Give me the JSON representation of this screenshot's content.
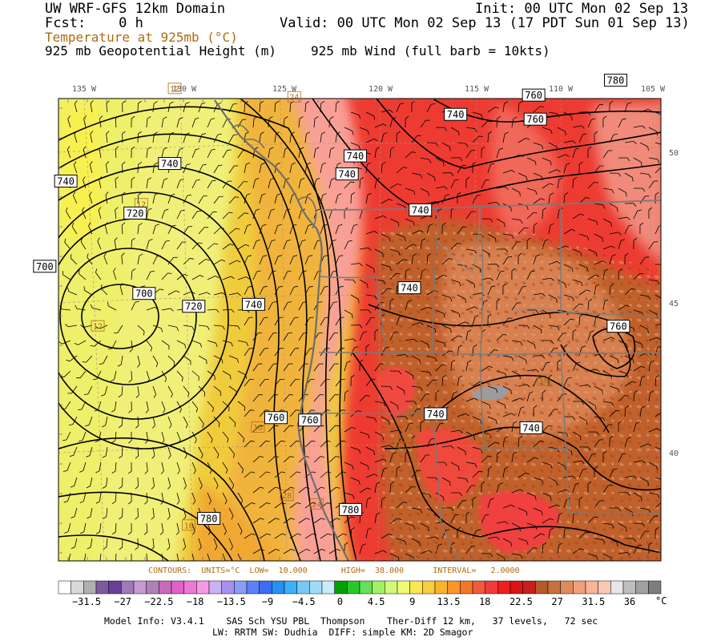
{
  "header": {
    "model": "UW WRF-GFS 12km Domain",
    "init": "Init: 00 UTC Mon 02 Sep 13",
    "fcst": "Fcst:    0 h",
    "valid": "Valid: 00 UTC Mon 02 Sep 13 (17 PDT Sun 01 Sep 13)",
    "field_temp": "Temperature at 925mb (°C)",
    "field_height": "925 mb Geopotential Height (m)",
    "field_wind": "925 mb Wind (full barb = 10kts)"
  },
  "map": {
    "lon_labels": [
      "135 W",
      "130 W",
      "125 W",
      "120 W",
      "115 W",
      "110 W",
      "105 W"
    ],
    "lat_labels": [
      "50",
      "45",
      "40"
    ],
    "height_labels": [
      {
        "text": "740",
        "lon": -136,
        "lat": 49.1
      },
      {
        "text": "740",
        "lon": -130.8,
        "lat": 49.5
      },
      {
        "text": "720",
        "lon": -132.5,
        "lat": 47.9
      },
      {
        "text": "700",
        "lon": -137,
        "lat": 46.3
      },
      {
        "text": "700",
        "lon": -132,
        "lat": 45.2
      },
      {
        "text": "720",
        "lon": -129.5,
        "lat": 44.7
      },
      {
        "text": "740",
        "lon": -126.5,
        "lat": 44.7
      },
      {
        "text": "760",
        "lon": -125.3,
        "lat": 40.9
      },
      {
        "text": "760",
        "lon": -123.6,
        "lat": 40.8
      },
      {
        "text": "780",
        "lon": -128.6,
        "lat": 37.6
      },
      {
        "text": "780",
        "lon": -121.5,
        "lat": 37.8
      },
      {
        "text": "740",
        "lon": -121.5,
        "lat": 49.6
      },
      {
        "text": "740",
        "lon": -121.9,
        "lat": 49.0
      },
      {
        "text": "740",
        "lon": -118.2,
        "lat": 47.8
      },
      {
        "text": "740",
        "lon": -118.7,
        "lat": 45.2
      },
      {
        "text": "740",
        "lon": -116.5,
        "lat": 51.0
      },
      {
        "text": "760",
        "lon": -112.6,
        "lat": 51.7
      },
      {
        "text": "760",
        "lon": -112.5,
        "lat": 50.9
      },
      {
        "text": "780",
        "lon": -108.5,
        "lat": 52.3
      },
      {
        "text": "760",
        "lon": -108.2,
        "lat": 44.1
      },
      {
        "text": "740",
        "lon": -117.3,
        "lat": 41.0
      },
      {
        "text": "740",
        "lon": -112.5,
        "lat": 40.6
      }
    ],
    "temp_labels": [
      {
        "text": "12",
        "lon": -130.6,
        "lat": 52.0
      },
      {
        "text": "24",
        "lon": -124.6,
        "lat": 51.6
      },
      {
        "text": "12",
        "lon": -132.2,
        "lat": 48.2
      },
      {
        "text": "12",
        "lon": -134.3,
        "lat": 44.2
      },
      {
        "text": "16",
        "lon": -126.2,
        "lat": 40.6
      },
      {
        "text": "36",
        "lon": -111.9,
        "lat": 42.2
      },
      {
        "text": "36",
        "lon": -118.8,
        "lat": 40.0
      },
      {
        "text": "28",
        "lon": -124.7,
        "lat": 38.3
      },
      {
        "text": "24",
        "lon": -123.2,
        "lat": 38.0
      },
      {
        "text": "16",
        "lon": -129.6,
        "lat": 37.4
      }
    ]
  },
  "contour_info": "CONTOURS:  UNITS=°C  LOW=  10.000       HIGH=  38.000      INTERVAL=   2.0000",
  "colorbar": {
    "colors": [
      "#ffffff",
      "#d8d8d8",
      "#b0b0b0",
      "#7d5a9e",
      "#6a3d9a",
      "#9e7ab8",
      "#c79ad2",
      "#b07fb8",
      "#c86ab8",
      "#e060c8",
      "#ee78d6",
      "#f69ae4",
      "#c8b4f0",
      "#a890f0",
      "#8c9cf8",
      "#5a82f8",
      "#3c6ef0",
      "#2890f0",
      "#3cb0f8",
      "#78c8f8",
      "#a0dcf8",
      "#c8ecf8",
      "#00a000",
      "#28c828",
      "#64e05a",
      "#a0f064",
      "#d2fa78",
      "#f0fa78",
      "#fae650",
      "#facd3c",
      "#fab428",
      "#fa9628",
      "#f07828",
      "#f05a3c",
      "#f03c3c",
      "#f01e1e",
      "#dc1414",
      "#c81e1e",
      "#b45a28",
      "#c87040",
      "#dc8c5a",
      "#f0a078",
      "#fab496",
      "#fac8b4",
      "#e6e6e6",
      "#bebebe",
      "#a0a0a0",
      "#7d7d7d"
    ],
    "labels": [
      "−31.5",
      "−27",
      "−22.5",
      "−18",
      "−13.5",
      "−9",
      "−4.5",
      "0",
      "4.5",
      "9",
      "13.5",
      "18",
      "22.5",
      "27",
      "31.5",
      "36"
    ],
    "unit": "°C"
  },
  "model_info": {
    "line1": "Model Info: V3.4.1    SAS Sch YSU PBL  Thompson    Ther-Diff 12 km,   37 levels,   72 sec",
    "line2": "LW: RRTM SW: Dudhia  DIFF: simple KM: 2D Smagor"
  }
}
